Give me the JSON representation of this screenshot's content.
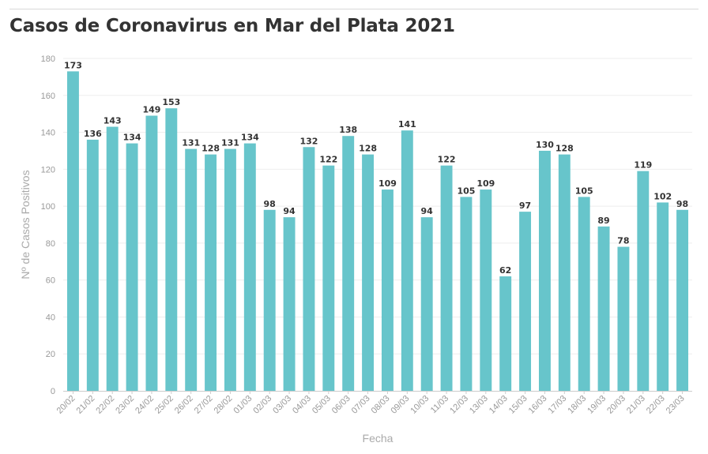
{
  "chart_data": {
    "type": "bar",
    "title": "Casos de Coronavirus en Mar del Plata 2021",
    "xlabel": "Fecha",
    "ylabel": "Nº de Casos Positivos",
    "ylim": [
      0,
      180
    ],
    "yticks": [
      0,
      20,
      40,
      60,
      80,
      100,
      120,
      140,
      160,
      180
    ],
    "grid": true,
    "bar_color": "#67c5cb",
    "categories": [
      "20/02",
      "21/02",
      "22/02",
      "23/02",
      "24/02",
      "25/02",
      "26/02",
      "27/02",
      "28/02",
      "01/03",
      "02/03",
      "03/03",
      "04/03",
      "05/03",
      "06/03",
      "07/03",
      "08/03",
      "09/03",
      "10/03",
      "11/03",
      "12/03",
      "13/03",
      "14/03",
      "15/03",
      "16/03",
      "17/03",
      "18/03",
      "19/03",
      "20/03",
      "21/03",
      "22/03",
      "23/03"
    ],
    "values": [
      173,
      136,
      143,
      134,
      149,
      153,
      131,
      128,
      131,
      134,
      98,
      94,
      132,
      122,
      138,
      128,
      109,
      141,
      94,
      122,
      105,
      109,
      62,
      97,
      130,
      128,
      105,
      89,
      78,
      119,
      102,
      98
    ]
  }
}
